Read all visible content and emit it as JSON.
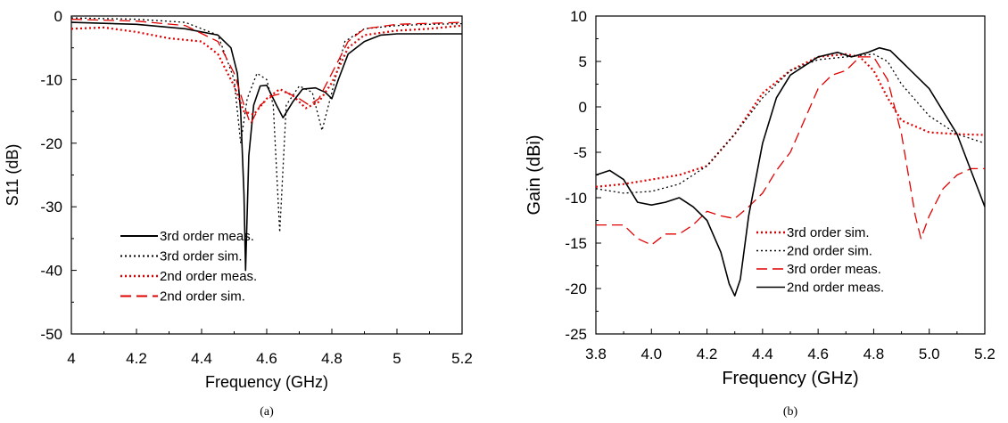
{
  "chart_data": [
    {
      "id": "a",
      "type": "line",
      "caption": "(a)",
      "xlabel": "Frequency (GHz)",
      "ylabel": "S11 (dB)",
      "xlim": [
        4,
        5.2
      ],
      "ylim": [
        -50,
        0
      ],
      "xticks": [
        4,
        4.2,
        4.4,
        4.6,
        4.8,
        5,
        5.2
      ],
      "xtick_labels": [
        "4",
        "4.2",
        "4.4",
        "4.6",
        "4.8",
        "5",
        "5.2"
      ],
      "yticks": [
        0,
        -10,
        -20,
        -30,
        -40,
        -50
      ],
      "ytick_labels": [
        "0",
        "-10",
        "-20",
        "-30",
        "-40",
        "-50"
      ],
      "grid": false,
      "legend_position": "bottom-left",
      "series": [
        {
          "name": "3rd order meas.",
          "color": "#000000",
          "style": "solid",
          "points": [
            [
              4,
              -1.0
            ],
            [
              4.2,
              -1.3
            ],
            [
              4.35,
              -2.0
            ],
            [
              4.45,
              -3.0
            ],
            [
              4.49,
              -5.0
            ],
            [
              4.51,
              -9.0
            ],
            [
              4.52,
              -15.0
            ],
            [
              4.53,
              -28.0
            ],
            [
              4.535,
              -40.0
            ],
            [
              4.545,
              -22.0
            ],
            [
              4.56,
              -14.0
            ],
            [
              4.58,
              -11.0
            ],
            [
              4.6,
              -10.9
            ],
            [
              4.63,
              -14.0
            ],
            [
              4.65,
              -16.0
            ],
            [
              4.68,
              -13.5
            ],
            [
              4.71,
              -11.5
            ],
            [
              4.75,
              -11.3
            ],
            [
              4.78,
              -12.0
            ],
            [
              4.8,
              -13.0
            ],
            [
              4.82,
              -10.0
            ],
            [
              4.85,
              -6.0
            ],
            [
              4.9,
              -4.0
            ],
            [
              4.95,
              -3.0
            ],
            [
              5.0,
              -2.8
            ],
            [
              5.1,
              -2.8
            ],
            [
              5.2,
              -2.8
            ]
          ]
        },
        {
          "name": "3rd order sim.",
          "color": "#000000",
          "style": "dotted",
          "points": [
            [
              4,
              -0.3
            ],
            [
              4.2,
              -0.5
            ],
            [
              4.35,
              -1.0
            ],
            [
              4.45,
              -3.0
            ],
            [
              4.5,
              -10.0
            ],
            [
              4.52,
              -20.0
            ],
            [
              4.54,
              -13.0
            ],
            [
              4.57,
              -9.0
            ],
            [
              4.6,
              -10.0
            ],
            [
              4.62,
              -14.0
            ],
            [
              4.64,
              -34.0
            ],
            [
              4.66,
              -14.0
            ],
            [
              4.7,
              -11.0
            ],
            [
              4.74,
              -12.0
            ],
            [
              4.77,
              -18.0
            ],
            [
              4.8,
              -12.0
            ],
            [
              4.84,
              -4.0
            ],
            [
              4.9,
              -2.0
            ],
            [
              5.0,
              -1.5
            ],
            [
              5.1,
              -1.3
            ],
            [
              5.2,
              -1.2
            ]
          ]
        },
        {
          "name": "2nd order meas.",
          "color": "#e00000",
          "style": "dotted",
          "points": [
            [
              4,
              -2.0
            ],
            [
              4.1,
              -1.8
            ],
            [
              4.2,
              -2.5
            ],
            [
              4.3,
              -3.5
            ],
            [
              4.4,
              -4.0
            ],
            [
              4.45,
              -6.0
            ],
            [
              4.5,
              -11.0
            ],
            [
              4.53,
              -15.0
            ],
            [
              4.56,
              -15.5
            ],
            [
              4.6,
              -13.0
            ],
            [
              4.64,
              -11.5
            ],
            [
              4.68,
              -12.5
            ],
            [
              4.72,
              -14.5
            ],
            [
              4.76,
              -13.5
            ],
            [
              4.8,
              -10.5
            ],
            [
              4.85,
              -5.0
            ],
            [
              4.9,
              -3.0
            ],
            [
              5.0,
              -2.3
            ],
            [
              5.1,
              -2.0
            ],
            [
              5.2,
              -1.5
            ]
          ]
        },
        {
          "name": "2nd order sim.",
          "color": "#e00000",
          "style": "dashed",
          "points": [
            [
              4,
              -0.5
            ],
            [
              4.2,
              -0.8
            ],
            [
              4.35,
              -1.5
            ],
            [
              4.45,
              -4.0
            ],
            [
              4.5,
              -9.0
            ],
            [
              4.53,
              -14.0
            ],
            [
              4.55,
              -17.0
            ],
            [
              4.58,
              -14.0
            ],
            [
              4.62,
              -12.5
            ],
            [
              4.66,
              -12.0
            ],
            [
              4.7,
              -13.0
            ],
            [
              4.73,
              -14.0
            ],
            [
              4.76,
              -13.0
            ],
            [
              4.8,
              -9.0
            ],
            [
              4.85,
              -4.0
            ],
            [
              4.9,
              -2.0
            ],
            [
              5.0,
              -1.3
            ],
            [
              5.2,
              -1.0
            ]
          ]
        }
      ]
    },
    {
      "id": "b",
      "type": "line",
      "caption": "(b)",
      "xlabel": "Frequency (GHz)",
      "ylabel": "Gain (dBi)",
      "xlim": [
        3.8,
        5.2
      ],
      "ylim": [
        -25,
        10
      ],
      "xticks": [
        3.8,
        4.0,
        4.2,
        4.4,
        4.6,
        4.8,
        5.0,
        5.2
      ],
      "xtick_labels": [
        "3.8",
        "4.0",
        "4.2",
        "4.4",
        "4.6",
        "4.8",
        "5.0",
        "5.2"
      ],
      "yticks": [
        10,
        5,
        0,
        -5,
        -10,
        -15,
        -20,
        -25
      ],
      "ytick_labels": [
        "10",
        "5",
        "0",
        "-5",
        "-10",
        "-15",
        "-20",
        "-25"
      ],
      "grid": false,
      "legend_position": "bottom-center",
      "series": [
        {
          "name": "3rd order sim.",
          "color": "#e00000",
          "style": "dotted",
          "points": [
            [
              3.8,
              -8.8
            ],
            [
              3.9,
              -8.5
            ],
            [
              4.0,
              -8.0
            ],
            [
              4.1,
              -7.5
            ],
            [
              4.2,
              -6.5
            ],
            [
              4.3,
              -3.0
            ],
            [
              4.4,
              1.5
            ],
            [
              4.5,
              4.0
            ],
            [
              4.6,
              5.5
            ],
            [
              4.7,
              5.8
            ],
            [
              4.75,
              5.5
            ],
            [
              4.8,
              4.0
            ],
            [
              4.85,
              1.0
            ],
            [
              4.9,
              -1.5
            ],
            [
              5.0,
              -2.8
            ],
            [
              5.1,
              -3.0
            ],
            [
              5.2,
              -3.1
            ]
          ]
        },
        {
          "name": "2nd order sim.",
          "color": "#000000",
          "style": "dotted",
          "points": [
            [
              3.8,
              -9.0
            ],
            [
              3.9,
              -9.5
            ],
            [
              4.0,
              -9.3
            ],
            [
              4.1,
              -8.5
            ],
            [
              4.2,
              -6.5
            ],
            [
              4.3,
              -3.0
            ],
            [
              4.4,
              1.0
            ],
            [
              4.5,
              4.0
            ],
            [
              4.6,
              5.2
            ],
            [
              4.7,
              5.5
            ],
            [
              4.8,
              5.8
            ],
            [
              4.85,
              5.0
            ],
            [
              4.9,
              2.5
            ],
            [
              5.0,
              -1.0
            ],
            [
              5.1,
              -3.0
            ],
            [
              5.2,
              -4.0
            ]
          ]
        },
        {
          "name": "3rd order meas.",
          "color": "#e00000",
          "style": "dashed",
          "points": [
            [
              3.8,
              -13.0
            ],
            [
              3.9,
              -13.0
            ],
            [
              3.95,
              -14.5
            ],
            [
              4.0,
              -15.2
            ],
            [
              4.05,
              -14.0
            ],
            [
              4.1,
              -14.0
            ],
            [
              4.15,
              -13.0
            ],
            [
              4.2,
              -11.5
            ],
            [
              4.25,
              -12.0
            ],
            [
              4.3,
              -12.3
            ],
            [
              4.35,
              -11.0
            ],
            [
              4.4,
              -9.5
            ],
            [
              4.45,
              -7.0
            ],
            [
              4.5,
              -5.0
            ],
            [
              4.55,
              -1.5
            ],
            [
              4.6,
              2.0
            ],
            [
              4.65,
              3.5
            ],
            [
              4.7,
              4.0
            ],
            [
              4.75,
              5.5
            ],
            [
              4.8,
              5.5
            ],
            [
              4.85,
              3.0
            ],
            [
              4.9,
              -3.0
            ],
            [
              4.95,
              -12.0
            ],
            [
              4.97,
              -14.5
            ],
            [
              5.0,
              -12.0
            ],
            [
              5.05,
              -9.0
            ],
            [
              5.1,
              -7.5
            ],
            [
              5.15,
              -6.8
            ],
            [
              5.2,
              -6.8
            ]
          ]
        },
        {
          "name": "2nd order meas.",
          "color": "#000000",
          "style": "solid",
          "points": [
            [
              3.8,
              -7.5
            ],
            [
              3.85,
              -7.0
            ],
            [
              3.9,
              -8.0
            ],
            [
              3.95,
              -10.5
            ],
            [
              4.0,
              -10.8
            ],
            [
              4.05,
              -10.5
            ],
            [
              4.1,
              -10.0
            ],
            [
              4.15,
              -11.0
            ],
            [
              4.2,
              -12.5
            ],
            [
              4.25,
              -16.0
            ],
            [
              4.28,
              -19.5
            ],
            [
              4.3,
              -20.8
            ],
            [
              4.32,
              -19.0
            ],
            [
              4.35,
              -12.0
            ],
            [
              4.4,
              -4.0
            ],
            [
              4.45,
              1.0
            ],
            [
              4.5,
              3.5
            ],
            [
              4.55,
              4.5
            ],
            [
              4.6,
              5.5
            ],
            [
              4.67,
              6.0
            ],
            [
              4.72,
              5.5
            ],
            [
              4.78,
              6.0
            ],
            [
              4.82,
              6.5
            ],
            [
              4.86,
              6.2
            ],
            [
              4.9,
              5.0
            ],
            [
              5.0,
              2.0
            ],
            [
              5.1,
              -3.0
            ],
            [
              5.15,
              -7.0
            ],
            [
              5.2,
              -11.0
            ]
          ]
        }
      ]
    }
  ]
}
